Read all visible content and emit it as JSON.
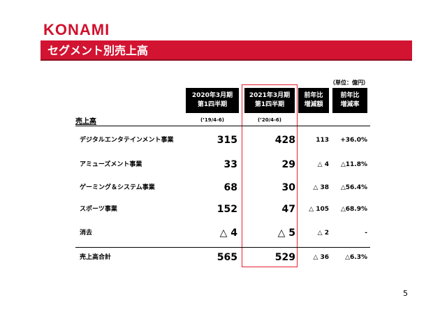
{
  "logo": "KONAMI",
  "title": "セグメント別売上高",
  "unit": "（単位：億円）",
  "headers": {
    "col1": [
      "2020年3月期",
      "第1四半期"
    ],
    "col2": [
      "2021年3月期",
      "第1四半期"
    ],
    "col3": [
      "前年比",
      "増減額"
    ],
    "col4": [
      "前年比",
      "増減率"
    ]
  },
  "periods": {
    "col1": "(’19/4-6)",
    "col2": "(’20/4-6)"
  },
  "section_label": "売上高",
  "rows": [
    {
      "label": "デジタルエンタテインメント事業",
      "prev": "315",
      "curr": "428",
      "diff": "113",
      "rate": "+36.0%"
    },
    {
      "label": "アミューズメント事業",
      "prev": "33",
      "curr": "29",
      "diff": "△ 4",
      "rate": "△11.8%"
    },
    {
      "label": "ゲーミング＆システム事業",
      "prev": "68",
      "curr": "30",
      "diff": "△ 38",
      "rate": "△56.4%"
    },
    {
      "label": "スポーツ事業",
      "prev": "152",
      "curr": "47",
      "diff": "△ 105",
      "rate": "△68.9%"
    },
    {
      "label": "消去",
      "prev": "△ 4",
      "curr": "△ 5",
      "diff": "△ 2",
      "rate": "-"
    },
    {
      "label": "売上高合計",
      "prev": "565",
      "curr": "529",
      "diff": "△ 36",
      "rate": "△6.3%"
    }
  ],
  "page_number": "5",
  "colors": {
    "brand_red": "#d21331",
    "highlight_border": "#e8202f",
    "header_bg": "#000000"
  }
}
